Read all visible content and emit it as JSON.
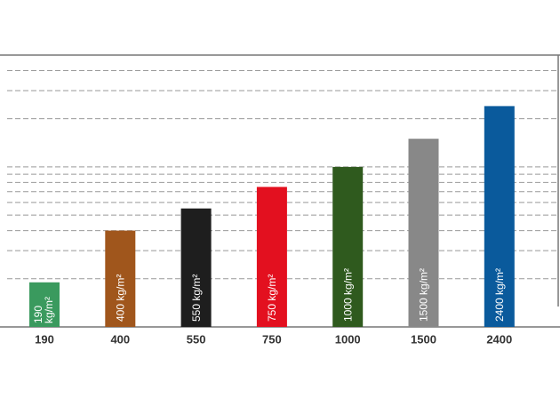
{
  "chart_data": {
    "type": "bar",
    "categories": [
      "190",
      "400",
      "550",
      "750",
      "1000",
      "1500",
      "2400"
    ],
    "values": [
      190,
      400,
      550,
      750,
      1000,
      1500,
      2400
    ],
    "value_labels": [
      "190 kg/m²",
      "400 kg/m²",
      "550 kg/m²",
      "750 kg/m²",
      "1000 kg/m²",
      "1500 kg/m²",
      "2400 kg/m²"
    ],
    "colors": [
      "#3a9a5e",
      "#a0561c",
      "#1e1e1e",
      "#e3101f",
      "#2f5a1e",
      "#888888",
      "#0a5a9c"
    ],
    "ylim": [
      100,
      5000
    ],
    "log_y": true,
    "yticks": [
      200,
      300,
      400,
      500,
      600,
      700,
      800,
      900,
      1000,
      2000,
      3000,
      4000
    ],
    "grid": true
  }
}
